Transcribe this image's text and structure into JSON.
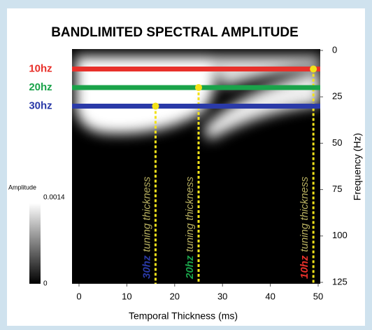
{
  "chart_data": {
    "type": "heatmap",
    "title": "BANDLIMITED SPECTRAL AMPLITUDE",
    "xlabel": "Temporal Thickness (ms)",
    "ylabel": "Frequency (Hz)",
    "xlim": [
      0,
      50
    ],
    "xticks": [
      0,
      10,
      20,
      30,
      40,
      50
    ],
    "ylim": [
      0,
      125
    ],
    "yticks": [
      0,
      25,
      50,
      75,
      100,
      125
    ],
    "series": [
      {
        "name": "10hz",
        "color": "#e8302a",
        "y": 10,
        "tuning_x": 49,
        "annotation": "tuning thickness"
      },
      {
        "name": "20hz",
        "color": "#1aa34a",
        "y": 20,
        "tuning_x": 25,
        "annotation": "tuning thickness"
      },
      {
        "name": "30hz",
        "color": "#2a3aa8",
        "y": 30,
        "tuning_x": 16,
        "annotation": "tuning thickness"
      }
    ],
    "tuning_color": "#f2e21a",
    "colorbar": {
      "label": "Amplitude",
      "ticks": [
        0,
        0.0014
      ]
    }
  }
}
